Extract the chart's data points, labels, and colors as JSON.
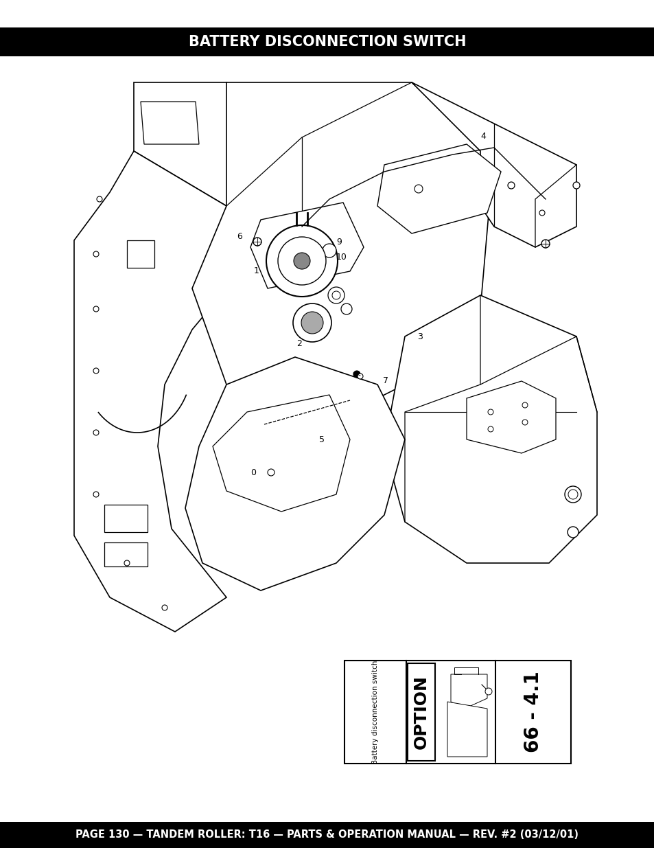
{
  "title": "BATTERY DISCONNECTION SWITCH",
  "footer_text": "PAGE 130 — TANDEM ROLLER: T16 — PARTS & OPERATION MANUAL — REV. #2 (03/12/01)",
  "header_bg": "#000000",
  "footer_bg": "#000000",
  "header_text_color": "#ffffff",
  "footer_text_color": "#ffffff",
  "bg_color": "#ffffff",
  "title_fontsize": 15,
  "footer_fontsize": 10.5,
  "inset_label_text": "Battery disconnection switch",
  "inset_option_text": "OPTION",
  "inset_number_text": "66 - 4.1",
  "line_color": "#000000",
  "lw": 1.0
}
